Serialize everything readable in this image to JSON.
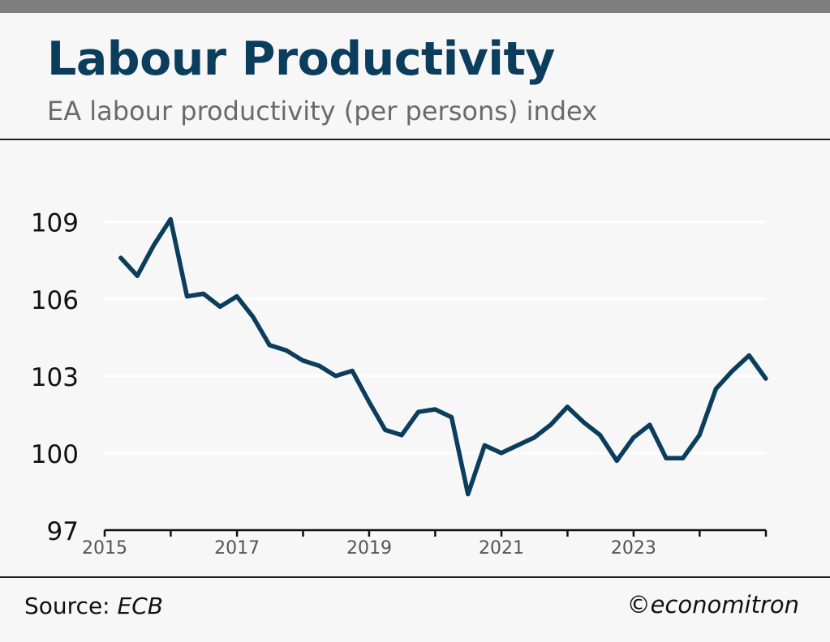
{
  "header": {
    "title": "Labour Productivity",
    "subtitle": "EA labour productivity (per persons) index"
  },
  "footer": {
    "source_label": "Source:",
    "source_value": "ECB",
    "credit": "©economitron"
  },
  "colors": {
    "line": "#0b3d5c",
    "title": "#0b3d5c",
    "grid": "#ffffff",
    "background": "#f7f7f7"
  },
  "chart_data": {
    "type": "line",
    "title": "Labour Productivity",
    "subtitle": "EA labour productivity (per persons) index",
    "xlabel": "",
    "ylabel": "",
    "ylim": [
      97,
      110
    ],
    "xlim": [
      "2015-01-01",
      "2025-01-01"
    ],
    "yticks": [
      97,
      100,
      103,
      106,
      109
    ],
    "xticks": [
      "2015",
      "2017",
      "2019",
      "2021",
      "2023"
    ],
    "grid": true,
    "series": [
      {
        "values": [
          {
            "x": "2015-03-31",
            "y": 107.6
          },
          {
            "x": "2015-06-30",
            "y": 106.9
          },
          {
            "x": "2015-09-30",
            "y": 108.1
          },
          {
            "x": "2015-12-31",
            "y": 109.1
          },
          {
            "x": "2016-03-31",
            "y": 106.1
          },
          {
            "x": "2016-06-30",
            "y": 106.2
          },
          {
            "x": "2016-09-30",
            "y": 105.7
          },
          {
            "x": "2016-12-31",
            "y": 106.1
          },
          {
            "x": "2017-03-31",
            "y": 105.3
          },
          {
            "x": "2017-06-30",
            "y": 104.2
          },
          {
            "x": "2017-09-30",
            "y": 104.0
          },
          {
            "x": "2017-12-31",
            "y": 103.6
          },
          {
            "x": "2018-03-31",
            "y": 103.4
          },
          {
            "x": "2018-06-30",
            "y": 103.0
          },
          {
            "x": "2018-09-30",
            "y": 103.2
          },
          {
            "x": "2018-12-31",
            "y": 102.0
          },
          {
            "x": "2019-03-31",
            "y": 100.9
          },
          {
            "x": "2019-06-30",
            "y": 100.7
          },
          {
            "x": "2019-09-30",
            "y": 101.6
          },
          {
            "x": "2019-12-31",
            "y": 101.7
          },
          {
            "x": "2020-03-31",
            "y": 101.4
          },
          {
            "x": "2020-06-30",
            "y": 98.4
          },
          {
            "x": "2020-09-30",
            "y": 100.3
          },
          {
            "x": "2020-12-31",
            "y": 100.0
          },
          {
            "x": "2021-03-31",
            "y": 100.3
          },
          {
            "x": "2021-06-30",
            "y": 100.6
          },
          {
            "x": "2021-09-30",
            "y": 101.1
          },
          {
            "x": "2021-12-31",
            "y": 101.8
          },
          {
            "x": "2022-03-31",
            "y": 101.2
          },
          {
            "x": "2022-06-30",
            "y": 100.7
          },
          {
            "x": "2022-09-30",
            "y": 99.7
          },
          {
            "x": "2022-12-31",
            "y": 100.6
          },
          {
            "x": "2023-03-31",
            "y": 101.1
          },
          {
            "x": "2023-06-30",
            "y": 99.8
          },
          {
            "x": "2023-09-30",
            "y": 99.8
          },
          {
            "x": "2023-12-31",
            "y": 100.7
          },
          {
            "x": "2024-03-31",
            "y": 102.5
          },
          {
            "x": "2024-06-30",
            "y": 103.2
          },
          {
            "x": "2024-09-30",
            "y": 103.8
          },
          {
            "x": "2024-12-31",
            "y": 102.9
          }
        ]
      }
    ]
  }
}
